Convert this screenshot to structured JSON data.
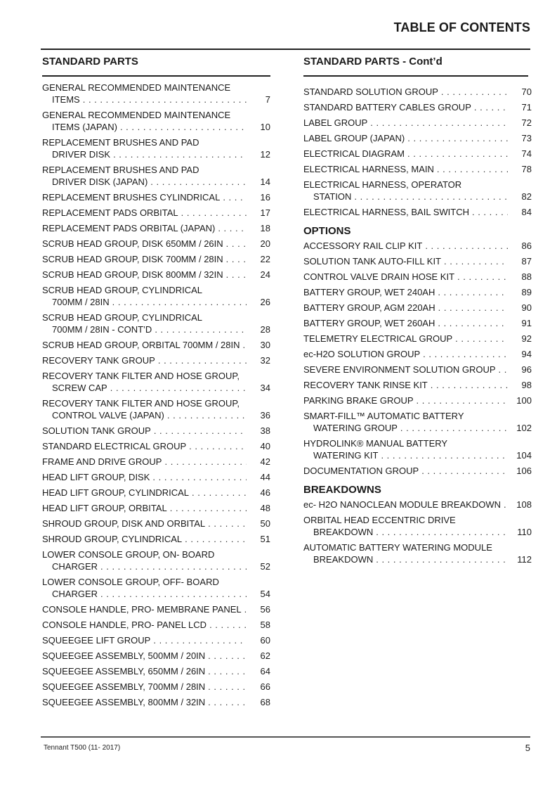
{
  "header": {
    "title": "TABLE OF CONTENTS"
  },
  "left": {
    "heading": "STANDARD PARTS",
    "items": [
      {
        "t": "GENERAL RECOMMENDED MAINTENANCE",
        "t2": "ITEMS",
        "p": "7"
      },
      {
        "t": "GENERAL RECOMMENDED MAINTENANCE",
        "t2": "ITEMS (JAPAN)",
        "p": "10"
      },
      {
        "t": "REPLACEMENT BRUSHES AND PAD",
        "t2": "DRIVER DISK",
        "p": "12"
      },
      {
        "t": "REPLACEMENT BRUSHES AND PAD",
        "t2": "DRIVER DISK (JAPAN)",
        "p": "14"
      },
      {
        "t": "REPLACEMENT BRUSHES CYLINDRICAL",
        "p": "16"
      },
      {
        "t": "REPLACEMENT PADS ORBITAL",
        "p": "17"
      },
      {
        "t": "REPLACEMENT PADS ORBITAL (JAPAN)",
        "p": "18"
      },
      {
        "t": "SCRUB HEAD GROUP, DISK 650MM / 26IN",
        "p": "20"
      },
      {
        "t": "SCRUB HEAD GROUP, DISK 700MM / 28IN",
        "p": "22"
      },
      {
        "t": "SCRUB HEAD GROUP, DISK 800MM / 32IN",
        "p": "24"
      },
      {
        "t": "SCRUB HEAD GROUP, CYLINDRICAL",
        "t2": "700MM / 28IN",
        "p": "26"
      },
      {
        "t": "SCRUB HEAD GROUP, CYLINDRICAL",
        "t2": "700MM / 28IN - CONT’D",
        "p": "28"
      },
      {
        "t": "SCRUB HEAD GROUP, ORBITAL 700MM / 28IN",
        "p": "30"
      },
      {
        "t": "RECOVERY TANK GROUP",
        "p": "32"
      },
      {
        "t": "RECOVERY TANK FILTER AND HOSE GROUP,",
        "t2": "SCREW CAP",
        "p": "34"
      },
      {
        "t": "RECOVERY TANK FILTER AND HOSE GROUP,",
        "t2": "CONTROL VALVE (JAPAN)",
        "p": "36"
      },
      {
        "t": "SOLUTION TANK GROUP",
        "p": "38"
      },
      {
        "t": "STANDARD ELECTRICAL GROUP",
        "p": "40"
      },
      {
        "t": "FRAME AND DRIVE GROUP",
        "p": "42"
      },
      {
        "t": "HEAD LIFT GROUP, DISK",
        "p": "44"
      },
      {
        "t": "HEAD LIFT GROUP, CYLINDRICAL",
        "p": "46"
      },
      {
        "t": "HEAD LIFT GROUP, ORBITAL",
        "p": "48"
      },
      {
        "t": "SHROUD GROUP, DISK AND ORBITAL",
        "p": "50"
      },
      {
        "t": "SHROUD GROUP, CYLINDRICAL",
        "p": "51"
      },
      {
        "t": "LOWER CONSOLE GROUP, ON- BOARD",
        "t2": "CHARGER",
        "p": "52"
      },
      {
        "t": "LOWER CONSOLE GROUP, OFF- BOARD",
        "t2": "CHARGER",
        "p": "54"
      },
      {
        "t": "CONSOLE HANDLE, PRO- MEMBRANE PANEL",
        "p": "56"
      },
      {
        "t": "CONSOLE HANDLE, PRO- PANEL LCD",
        "p": "58"
      },
      {
        "t": "SQUEEGEE LIFT GROUP",
        "p": "60"
      },
      {
        "t": "SQUEEGEE ASSEMBLY, 500MM / 20IN",
        "p": "62"
      },
      {
        "t": "SQUEEGEE ASSEMBLY, 650MM / 26IN",
        "p": "64"
      },
      {
        "t": "SQUEEGEE ASSEMBLY, 700MM / 28IN",
        "p": "66"
      },
      {
        "t": "SQUEEGEE ASSEMBLY, 800MM / 32IN",
        "p": "68"
      }
    ]
  },
  "right": {
    "heading": "STANDARD PARTS - Cont’d",
    "sections": [
      {
        "title": "",
        "items": [
          {
            "t": "STANDARD SOLUTION GROUP",
            "p": "70"
          },
          {
            "t": "STANDARD BATTERY CABLES GROUP",
            "p": "71"
          },
          {
            "t": "LABEL GROUP",
            "p": "72"
          },
          {
            "t": "LABEL GROUP (JAPAN)",
            "p": "73"
          },
          {
            "t": "ELECTRICAL DIAGRAM",
            "p": "74"
          },
          {
            "t": "ELECTRICAL HARNESS, MAIN",
            "p": "78"
          },
          {
            "t": "ELECTRICAL HARNESS, OPERATOR",
            "t2": "STATION",
            "p": "82"
          },
          {
            "t": "ELECTRICAL HARNESS, BAIL SWITCH",
            "p": "84"
          }
        ]
      },
      {
        "title": "OPTIONS",
        "items": [
          {
            "t": "ACCESSORY RAIL CLIP KIT",
            "p": "86"
          },
          {
            "t": "SOLUTION TANK AUTO-FILL KIT",
            "p": "87"
          },
          {
            "t": "CONTROL VALVE DRAIN HOSE KIT",
            "p": "88"
          },
          {
            "t": "BATTERY GROUP, WET 240AH",
            "p": "89"
          },
          {
            "t": "BATTERY GROUP, AGM 220AH",
            "p": "90"
          },
          {
            "t": "BATTERY GROUP, WET 260AH",
            "p": "91"
          },
          {
            "t": "TELEMETRY ELECTRICAL GROUP",
            "p": "92"
          },
          {
            "t": "ec-H2O SOLUTION GROUP",
            "p": "94"
          },
          {
            "t": "SEVERE ENVIRONMENT SOLUTION GROUP",
            "p": "96"
          },
          {
            "t": "RECOVERY TANK RINSE KIT",
            "p": "98"
          },
          {
            "t": "PARKING BRAKE GROUP",
            "p": "100"
          },
          {
            "t": "SMART-FILL™    AUTOMATIC BATTERY",
            "t2": "WATERING GROUP",
            "p": "102"
          },
          {
            "t": "HYDROLINK® MANUAL BATTERY",
            "t2": "WATERING KIT",
            "p": "104"
          },
          {
            "t": "DOCUMENTATION GROUP",
            "p": "106"
          }
        ]
      },
      {
        "title": "BREAKDOWNS",
        "items": [
          {
            "t": "ec- H2O NANOCLEAN MODULE BREAKDOWN",
            "p": "108"
          },
          {
            "t": "ORBITAL HEAD ECCENTRIC DRIVE",
            "t2": "BREAKDOWN",
            "p": "110"
          },
          {
            "t": "AUTOMATIC BATTERY WATERING MODULE",
            "t2": "BREAKDOWN",
            "p": "112"
          }
        ]
      }
    ]
  },
  "footer": {
    "doc": "Tennant T500  (11- 2017)",
    "page": "5"
  }
}
